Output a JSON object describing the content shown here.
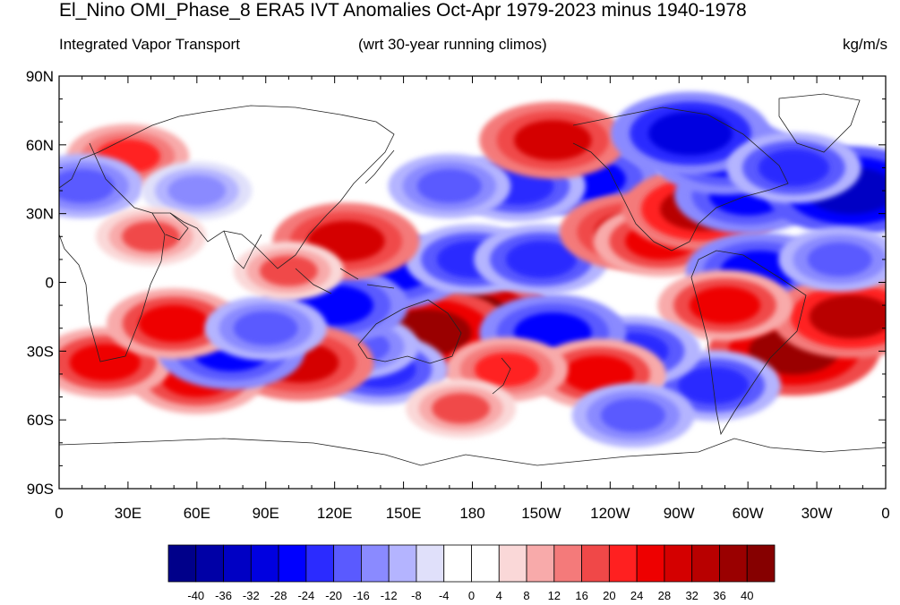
{
  "title": "El_Nino OMI_Phase_8 ERA5 IVT Anomalies Oct-Apr 1979-2023 minus 1940-1978",
  "subtitle_left": "Integrated Vapor Transport",
  "subtitle_center": "(wrt 30-year running climos)",
  "subtitle_right": "kg/m/s",
  "lat_labels": [
    "90N",
    "60N",
    "30N",
    "0",
    "30S",
    "60S",
    "90S"
  ],
  "lon_labels": [
    "0",
    "30E",
    "60E",
    "90E",
    "120E",
    "150E",
    "180",
    "150W",
    "120W",
    "90W",
    "60W",
    "30W",
    "0"
  ],
  "colorbar": {
    "labels": [
      "-40",
      "-36",
      "-32",
      "-28",
      "-24",
      "-20",
      "-16",
      "-12",
      "-8",
      "-4",
      "0",
      "4",
      "8",
      "12",
      "16",
      "20",
      "24",
      "28",
      "32",
      "36",
      "40"
    ],
    "colors": [
      "#00008a",
      "#0000a6",
      "#0000c4",
      "#0000e0",
      "#0000ff",
      "#2b2bff",
      "#5a5aff",
      "#8a8aff",
      "#b4b4ff",
      "#e0e0fa",
      "#ffffff",
      "#ffffff",
      "#fad8d8",
      "#f8aaaa",
      "#f47a7a",
      "#f04848",
      "#ff2020",
      "#ee0000",
      "#d40000",
      "#b80000",
      "#9a0000",
      "#860000"
    ]
  },
  "anomaly_blobs": [
    {
      "lon": 175,
      "lat": -15,
      "value": 40
    },
    {
      "lon": 160,
      "lat": -22,
      "value": 36
    },
    {
      "lon": 145,
      "lat": 5,
      "value": -28
    },
    {
      "lon": 180,
      "lat": 10,
      "value": -24
    },
    {
      "lon": 210,
      "lat": 10,
      "value": -24
    },
    {
      "lon": 230,
      "lat": 45,
      "value": -28
    },
    {
      "lon": 200,
      "lat": 42,
      "value": -24
    },
    {
      "lon": 170,
      "lat": 42,
      "value": -20
    },
    {
      "lon": 215,
      "lat": 62,
      "value": 28
    },
    {
      "lon": 250,
      "lat": 22,
      "value": 28
    },
    {
      "lon": 262,
      "lat": 18,
      "value": 24
    },
    {
      "lon": 280,
      "lat": 32,
      "value": 32
    },
    {
      "lon": 300,
      "lat": 38,
      "value": -28
    },
    {
      "lon": 345,
      "lat": 40,
      "value": -36
    },
    {
      "lon": 305,
      "lat": 5,
      "value": -28
    },
    {
      "lon": 290,
      "lat": 55,
      "value": -28
    },
    {
      "lon": 275,
      "lat": 65,
      "value": -32
    },
    {
      "lon": 320,
      "lat": 50,
      "value": -24
    },
    {
      "lon": 320,
      "lat": -30,
      "value": 36
    },
    {
      "lon": 345,
      "lat": -15,
      "value": 32
    },
    {
      "lon": 290,
      "lat": -10,
      "value": 24
    },
    {
      "lon": 285,
      "lat": -45,
      "value": -24
    },
    {
      "lon": 250,
      "lat": -30,
      "value": -24
    },
    {
      "lon": 215,
      "lat": -22,
      "value": -28
    },
    {
      "lon": 235,
      "lat": -40,
      "value": 24
    },
    {
      "lon": 195,
      "lat": -38,
      "value": 20
    },
    {
      "lon": 140,
      "lat": -38,
      "value": -24
    },
    {
      "lon": 130,
      "lat": -28,
      "value": -20
    },
    {
      "lon": 120,
      "lat": -10,
      "value": -28
    },
    {
      "lon": 125,
      "lat": 18,
      "value": 28
    },
    {
      "lon": 105,
      "lat": -35,
      "value": 28
    },
    {
      "lon": 60,
      "lat": -42,
      "value": 24
    },
    {
      "lon": 20,
      "lat": -35,
      "value": 24
    },
    {
      "lon": 75,
      "lat": -30,
      "value": -28
    },
    {
      "lon": 50,
      "lat": -18,
      "value": 24
    },
    {
      "lon": 90,
      "lat": -20,
      "value": -20
    },
    {
      "lon": 30,
      "lat": 55,
      "value": 20
    },
    {
      "lon": 10,
      "lat": 42,
      "value": -20
    },
    {
      "lon": 60,
      "lat": 40,
      "value": -16
    },
    {
      "lon": 40,
      "lat": 20,
      "value": 16
    },
    {
      "lon": 250,
      "lat": -58,
      "value": -20
    },
    {
      "lon": 175,
      "lat": -55,
      "value": 16
    },
    {
      "lon": 340,
      "lat": 10,
      "value": -20
    },
    {
      "lon": 100,
      "lat": 5,
      "value": 16
    }
  ]
}
